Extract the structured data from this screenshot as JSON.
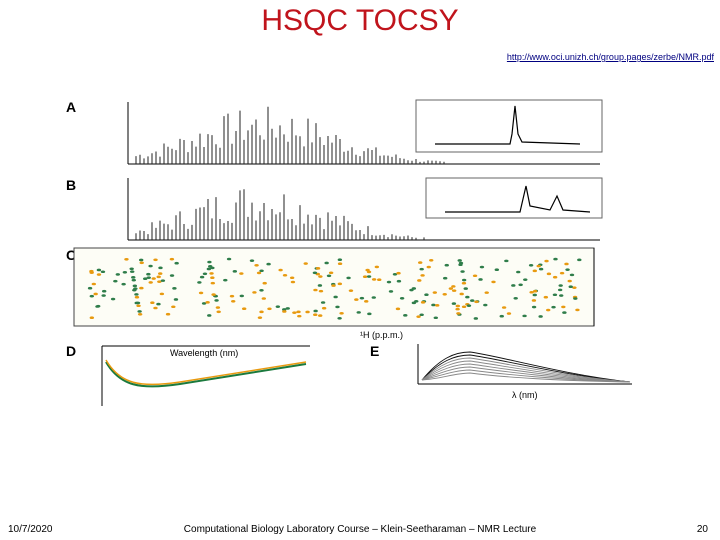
{
  "slide": {
    "title": "HSQC TOCSY",
    "source_link": "http://www.oci.unizh.ch/group.pages/zerbe/NMR.pdf"
  },
  "figure": {
    "panels": [
      {
        "letter": "A"
      },
      {
        "letter": "B"
      },
      {
        "letter": "C",
        "xlabel": "¹H (p.p.m.)"
      },
      {
        "letter": "D",
        "xlabel": "Wavelength (nm)"
      },
      {
        "letter": "E",
        "xlabel": "λ (nm)"
      }
    ]
  },
  "footer": {
    "date": "10/7/2020",
    "course": "Computational Biology Laboratory Course – Klein-Seetharaman – NMR Lecture",
    "page": "20"
  }
}
